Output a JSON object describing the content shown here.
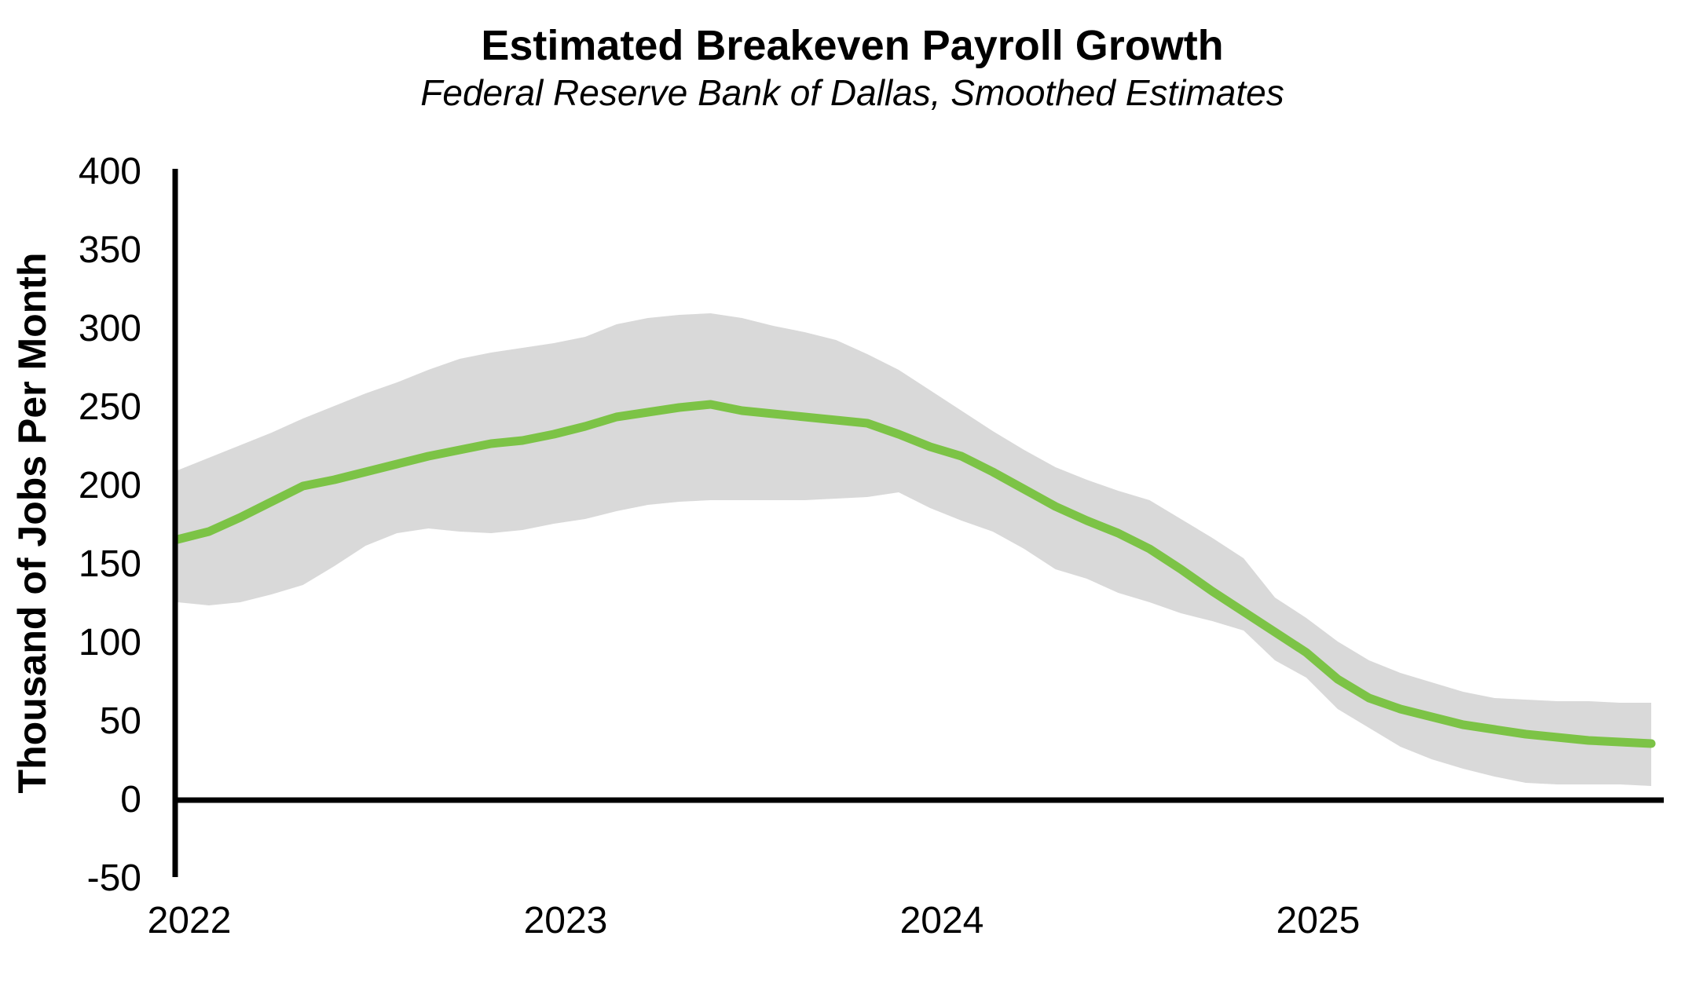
{
  "chart_data": {
    "type": "line",
    "title": "Estimated Breakeven Payroll Growth",
    "subtitle": "Federal Reserve Bank of Dallas, Smoothed Estimates",
    "ylabel": "Thousand of Jobs Per Month",
    "xlabel": "",
    "ylim": [
      -50,
      400
    ],
    "y_ticks": [
      400,
      350,
      300,
      250,
      200,
      150,
      100,
      50,
      0,
      -50
    ],
    "x_ticks": [
      {
        "label": "2022",
        "month_index": 0
      },
      {
        "label": "2023",
        "month_index": 12
      },
      {
        "label": "2024",
        "month_index": 24
      },
      {
        "label": "2025",
        "month_index": 36
      }
    ],
    "grid": false,
    "legend": "none",
    "zero_line": true,
    "months": [
      "2022-01",
      "2022-02",
      "2022-03",
      "2022-04",
      "2022-05",
      "2022-06",
      "2022-07",
      "2022-08",
      "2022-09",
      "2022-10",
      "2022-11",
      "2022-12",
      "2023-01",
      "2023-02",
      "2023-03",
      "2023-04",
      "2023-05",
      "2023-06",
      "2023-07",
      "2023-08",
      "2023-09",
      "2023-10",
      "2023-11",
      "2023-12",
      "2024-01",
      "2024-02",
      "2024-03",
      "2024-04",
      "2024-05",
      "2024-06",
      "2024-07",
      "2024-08",
      "2024-09",
      "2024-10",
      "2024-11",
      "2024-12",
      "2025-01",
      "2025-02",
      "2025-03",
      "2025-04",
      "2025-05",
      "2025-06",
      "2025-07",
      "2025-08",
      "2025-09",
      "2025-10",
      "2025-11",
      "2025-12"
    ],
    "series": [
      {
        "name": "Breakeven payroll growth (smoothed estimate)",
        "color": "#7cc346",
        "values": [
          165,
          170,
          179,
          189,
          199,
          203,
          208,
          213,
          218,
          222,
          226,
          228,
          232,
          237,
          243,
          246,
          249,
          251,
          247,
          245,
          243,
          241,
          239,
          232,
          224,
          218,
          208,
          197,
          186,
          177,
          169,
          159,
          146,
          132,
          119,
          106,
          93,
          76,
          64,
          57,
          52,
          47,
          44,
          41,
          39,
          37,
          36,
          35
        ]
      }
    ],
    "band": {
      "name": "Uncertainty band",
      "color": "#d9d9d9",
      "upper": [
        209,
        217,
        225,
        233,
        242,
        250,
        258,
        265,
        273,
        280,
        284,
        287,
        290,
        294,
        302,
        306,
        308,
        309,
        306,
        301,
        297,
        292,
        283,
        273,
        260,
        247,
        234,
        222,
        211,
        203,
        196,
        190,
        178,
        166,
        153,
        128,
        115,
        100,
        88,
        80,
        74,
        68,
        64,
        63,
        62,
        62,
        61,
        61
      ],
      "lower": [
        125,
        123,
        125,
        130,
        136,
        148,
        161,
        169,
        172,
        170,
        169,
        171,
        175,
        178,
        183,
        187,
        189,
        190,
        190,
        190,
        190,
        191,
        192,
        195,
        185,
        177,
        170,
        159,
        146,
        140,
        131,
        125,
        118,
        113,
        107,
        88,
        77,
        57,
        45,
        33,
        25,
        19,
        14,
        10,
        9,
        9,
        9,
        8
      ]
    },
    "colors": {
      "line": "#7cc346",
      "band": "#d9d9d9",
      "axis": "#000000",
      "text": "#000000",
      "background": "#ffffff"
    }
  }
}
